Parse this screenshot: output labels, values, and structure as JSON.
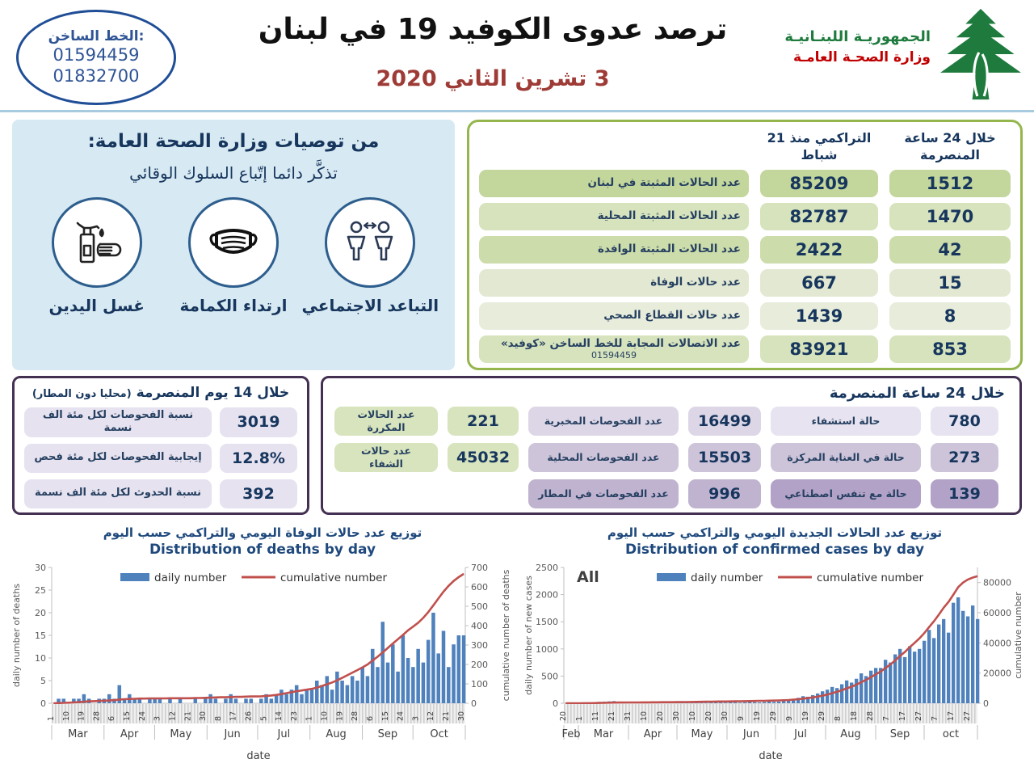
{
  "header": {
    "hotline": {
      "label": "الخط الساخن:",
      "numbers": [
        "01594459",
        "01832700"
      ]
    },
    "title": "ترصد عدوى الكوفيد 19 في لبنان",
    "date": "3 تشرين الثاني 2020",
    "ministry": {
      "line1": "الجمهوريـة اللبنـانيـة",
      "line2": "وزارة الصحـة العامـة"
    }
  },
  "recommendations": {
    "title": "من توصيات وزارة الصحة العامة:",
    "subtitle": "تذكَّر دائما إتّباع السلوك الوقائي",
    "items": [
      {
        "icon": "hand-washing-icon",
        "label": "غسل اليدين"
      },
      {
        "icon": "face-mask-icon",
        "label": "ارتداء الكمامة"
      },
      {
        "icon": "social-distancing-icon",
        "label": "التباعد الاجتماعي"
      }
    ]
  },
  "summary_table": {
    "header_24h": "خلال 24 ساعة المنصرمة",
    "header_cumulative": "التراكمي منذ 21 شباط",
    "row_shades": [
      "#c3d69b",
      "#d6e3bc",
      "#ccdcaa",
      "#e2e8d1",
      "#e7ecdb",
      "#d6e3bc"
    ],
    "rows": [
      {
        "label": "عدد الحالات المثبتة في لبنان",
        "cumulative": "85209",
        "last24h": "1512"
      },
      {
        "label": "عدد الحالات المثبتة المحلية",
        "cumulative": "82787",
        "last24h": "1470"
      },
      {
        "label": "عدد الحالات المثبتة الوافدة",
        "cumulative": "2422",
        "last24h": "42"
      },
      {
        "label": "عدد حالات الوفاة",
        "cumulative": "667",
        "last24h": "15"
      },
      {
        "label": "عدد حالات القطاع الصحي",
        "cumulative": "1439",
        "last24h": "8"
      },
      {
        "label": "عدد الاتصالات المجابة  للخط الساخن «كوفيد»",
        "sublabel": "01594459",
        "cumulative": "83921",
        "last24h": "853"
      }
    ]
  },
  "fourteen_day_box": {
    "title": "خلال 14 يوم المنصرمة",
    "title_note": "(محليا دون المطار)",
    "pill_color": "#e6e2ef",
    "rows": [
      {
        "label": "نسبة الفحوصات لكل مئة الف نسمة",
        "value": "3019"
      },
      {
        "label": "إيجابية الفحوصات لكل مئة فحص",
        "value": "12.8%"
      },
      {
        "label": "نسبة الحدوث لكل مئة الف نسمة",
        "value": "392"
      }
    ]
  },
  "last24_box": {
    "title": "خلال 24 ساعة المنصرمة",
    "green_shade": "#d7e4bd",
    "test_shades": [
      "#ddd6e6",
      "#cdc4da",
      "#c0b3d0"
    ],
    "case_shades": [
      "#e7e3f0",
      "#cdc4da",
      "#b2a2c7"
    ],
    "green_rows": [
      {
        "label": "عدد الحالات المكررة",
        "value": "221"
      },
      {
        "label": "عدد حالات الشفاء",
        "value": "45032"
      }
    ],
    "test_rows": [
      {
        "label": "عدد الفحوصات المخبرية",
        "value": "16499"
      },
      {
        "label": "عدد الفحوصات المحلية",
        "value": "15503"
      },
      {
        "label": "عدد الفحوصات في المطار",
        "value": "996"
      }
    ],
    "case_rows": [
      {
        "label": "حالة استشفاء",
        "value": "780"
      },
      {
        "label": "حالة في العناية المركزة",
        "value": "273"
      },
      {
        "label": "حالة مع تنفس اصطناعي",
        "value": "139"
      }
    ]
  },
  "chart_data": [
    {
      "type": "bar+line",
      "title_ar": "توزيع عدد حالات  الوفاة اليومي والتراكمي حسب اليوم",
      "title_en": "Distribution of deaths by day",
      "legend": {
        "daily": "daily number",
        "cumulative": "cumulative number"
      },
      "ylabel_left": "daily number of deaths",
      "ylabel_right": "cumulative number of deaths",
      "xlabel": "date",
      "ylim_left": [
        0,
        30
      ],
      "yticks_left": [
        0,
        5,
        10,
        15,
        20,
        25,
        30
      ],
      "ylim_right": [
        0,
        700
      ],
      "yticks_right": [
        0,
        100,
        200,
        300,
        400,
        500,
        600,
        700
      ],
      "bar_color": "#4f81bd",
      "line_color": "#c0504d",
      "sample_step_days": 3,
      "total_days": 245,
      "day_tick_interval": 9,
      "day_ticks": [
        "1",
        "10",
        "19",
        "28",
        "6",
        "15",
        "24",
        "3",
        "12",
        "21",
        "30",
        "8",
        "17",
        "26",
        "5",
        "14",
        "23",
        "1",
        "10",
        "19",
        "28",
        "6",
        "15",
        "24",
        "3",
        "12",
        "21",
        "30"
      ],
      "months": [
        {
          "label": "Mar",
          "days": 31
        },
        {
          "label": "Apr",
          "days": 30
        },
        {
          "label": "May",
          "days": 31
        },
        {
          "label": "Jun",
          "days": 30
        },
        {
          "label": "Jul",
          "days": 31
        },
        {
          "label": "Aug",
          "days": 31
        },
        {
          "label": "Sep",
          "days": 30
        },
        {
          "label": "Oct",
          "days": 31
        }
      ],
      "daily": [
        0,
        1,
        1,
        0,
        1,
        1,
        2,
        1,
        0,
        1,
        1,
        2,
        1,
        4,
        1,
        2,
        1,
        1,
        0,
        1,
        1,
        1,
        0,
        1,
        0,
        1,
        0,
        0,
        1,
        0,
        1,
        2,
        1,
        0,
        1,
        2,
        1,
        0,
        1,
        1,
        0,
        1,
        2,
        1,
        2,
        3,
        2,
        3,
        4,
        2,
        3,
        3,
        5,
        4,
        6,
        3,
        7,
        5,
        4,
        6,
        5,
        8,
        6,
        12,
        8,
        18,
        9,
        13,
        7,
        15,
        10,
        8,
        12,
        9,
        14,
        20,
        11,
        16,
        8,
        13,
        15,
        15
      ],
      "cumulative": [
        0,
        1,
        2,
        3,
        4,
        6,
        8,
        10,
        11,
        12,
        13,
        14,
        16,
        19,
        21,
        22,
        23,
        24,
        24,
        25,
        25,
        25,
        25,
        26,
        26,
        26,
        26,
        26,
        27,
        27,
        28,
        29,
        30,
        31,
        31,
        32,
        33,
        33,
        34,
        35,
        35,
        36,
        38,
        40,
        43,
        47,
        52,
        57,
        62,
        66,
        70,
        74,
        81,
        89,
        98,
        107,
        118,
        131,
        144,
        158,
        171,
        185,
        200,
        220,
        240,
        262,
        285,
        308,
        330,
        352,
        376,
        395,
        415,
        440,
        470,
        505,
        540,
        575,
        605,
        630,
        650,
        667
      ]
    },
    {
      "type": "bar+line",
      "title_ar": "توزيع عدد الحالات الجديدة اليومي والتراكمي حسب اليوم",
      "title_en": "Distribution of confirmed cases by day",
      "corner_label": "All",
      "legend": {
        "daily": "daily number",
        "cumulative": "cumulative number"
      },
      "ylabel_left": "daily number of new cases",
      "ylabel_right": "cumulative number",
      "xlabel": "date",
      "ylim_left": [
        0,
        2500
      ],
      "yticks_left": [
        0,
        500,
        1000,
        1500,
        2000,
        2500
      ],
      "ylim_right": [
        0,
        90000
      ],
      "yticks_right": [
        0,
        20000,
        40000,
        60000,
        80000
      ],
      "bar_color": "#4f81bd",
      "line_color": "#c0504d",
      "sample_step_days": 3,
      "total_days": 256,
      "day_tick_interval": 10,
      "day_ticks": [
        "20",
        "1",
        "11",
        "21",
        "31",
        "10",
        "20",
        "30",
        "10",
        "20",
        "30",
        "9",
        "19",
        "29",
        "9",
        "19",
        "29",
        "8",
        "18",
        "28",
        "7",
        "17",
        "27",
        "7",
        "17",
        "27"
      ],
      "months": [
        {
          "label": "Feb",
          "days": 9
        },
        {
          "label": "Mar",
          "days": 31
        },
        {
          "label": "Apr",
          "days": 30
        },
        {
          "label": "May",
          "days": 31
        },
        {
          "label": "Jun",
          "days": 30
        },
        {
          "label": "Jul",
          "days": 31
        },
        {
          "label": "Aug",
          "days": 31
        },
        {
          "label": "Sep",
          "days": 30
        },
        {
          "label": "oct",
          "days": 33
        }
      ],
      "daily": [
        1,
        2,
        3,
        4,
        6,
        10,
        15,
        25,
        30,
        35,
        40,
        25,
        20,
        15,
        10,
        12,
        15,
        10,
        8,
        12,
        9,
        7,
        10,
        8,
        12,
        20,
        30,
        25,
        15,
        10,
        18,
        22,
        15,
        12,
        15,
        20,
        12,
        18,
        25,
        20,
        15,
        22,
        30,
        25,
        30,
        45,
        60,
        80,
        100,
        130,
        120,
        150,
        180,
        220,
        250,
        300,
        280,
        350,
        420,
        380,
        450,
        550,
        500,
        600,
        650,
        650,
        800,
        750,
        900,
        1000,
        850,
        1050,
        950,
        1000,
        1150,
        1350,
        1200,
        1450,
        1550,
        1300,
        1850,
        1950,
        1700,
        1600,
        1800,
        1550
      ],
      "cumulative": [
        2,
        4,
        8,
        15,
        35,
        70,
        120,
        190,
        270,
        350,
        420,
        470,
        500,
        520,
        540,
        560,
        590,
        610,
        630,
        650,
        670,
        690,
        710,
        725,
        750,
        790,
        850,
        910,
        960,
        1000,
        1050,
        1110,
        1160,
        1200,
        1240,
        1290,
        1330,
        1380,
        1450,
        1510,
        1560,
        1630,
        1720,
        1790,
        1880,
        2000,
        2160,
        2390,
        2680,
        3050,
        3420,
        3870,
        4400,
        5060,
        5800,
        6700,
        7550,
        8600,
        9850,
        11000,
        12350,
        14000,
        15500,
        17300,
        19200,
        21000,
        23400,
        25700,
        28400,
        31400,
        34000,
        37200,
        40000,
        43000,
        46500,
        50500,
        54400,
        58700,
        63300,
        67200,
        72000,
        77000,
        80000,
        82000,
        83300,
        84200
      ]
    }
  ]
}
